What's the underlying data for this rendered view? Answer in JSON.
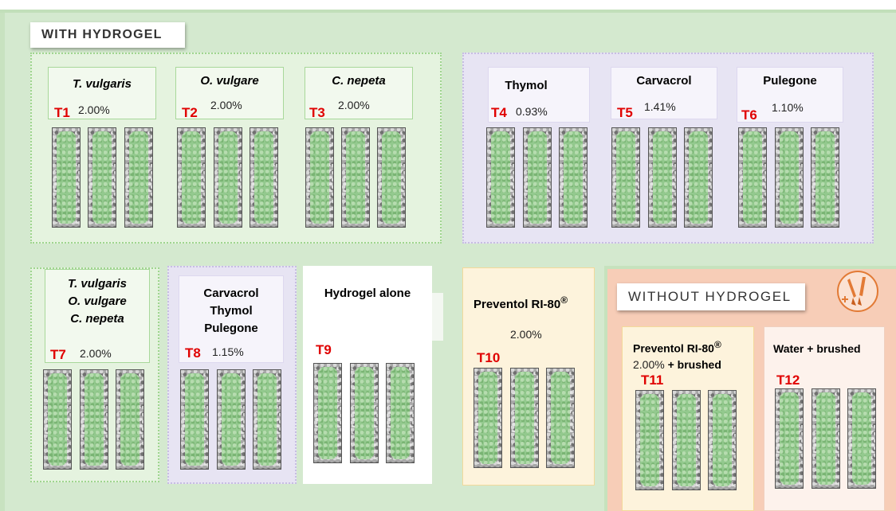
{
  "sections": {
    "with_hydrogel": "WITH HYDROGEL",
    "without_hydrogel": "WITHOUT HYDROGEL"
  },
  "treatments": {
    "t1": {
      "code": "T1",
      "name": "T. vulgaris",
      "conc": "2.00%"
    },
    "t2": {
      "code": "T2",
      "name": "O. vulgare",
      "conc": "2.00%"
    },
    "t3": {
      "code": "T3",
      "name": "C. nepeta",
      "conc": "2.00%"
    },
    "t4": {
      "code": "T4",
      "name": "Thymol",
      "conc": "0.93%"
    },
    "t5": {
      "code": "T5",
      "name": "Carvacrol",
      "conc": "1.41%"
    },
    "t6": {
      "code": "T6",
      "name": "Pulegone",
      "conc": "1.10%"
    },
    "t7": {
      "code": "T7",
      "lines": [
        "T. vulgaris",
        "O. vulgare",
        "C. nepeta"
      ],
      "conc": "2.00%"
    },
    "t8": {
      "code": "T8",
      "lines": [
        "Carvacrol",
        "Thymol",
        "Pulegone"
      ],
      "conc": "1.15%"
    },
    "t9": {
      "code": "T9",
      "name": "Hydrogel alone"
    },
    "t10": {
      "code": "T10",
      "name": "Preventol RI-80",
      "reg": "®",
      "conc": "2.00%"
    },
    "t11": {
      "code": "T11",
      "name": "Preventol RI-80",
      "reg": "®",
      "conc": "2.00%",
      "extra": "+ brushed"
    },
    "t12": {
      "code": "T12",
      "name": "Water + brushed"
    }
  },
  "colors": {
    "background": "#d4e9cf",
    "code_red": "#e00000",
    "essential_oil_group": "#e5f3df",
    "compound_group": "#e7e4f3",
    "control_yellow": "#fdf3dc",
    "no_hydrogel_area": "#f7cdb7",
    "icon_orange": "#e27a35"
  },
  "icons": {
    "brush": "paintbrush-icon"
  }
}
